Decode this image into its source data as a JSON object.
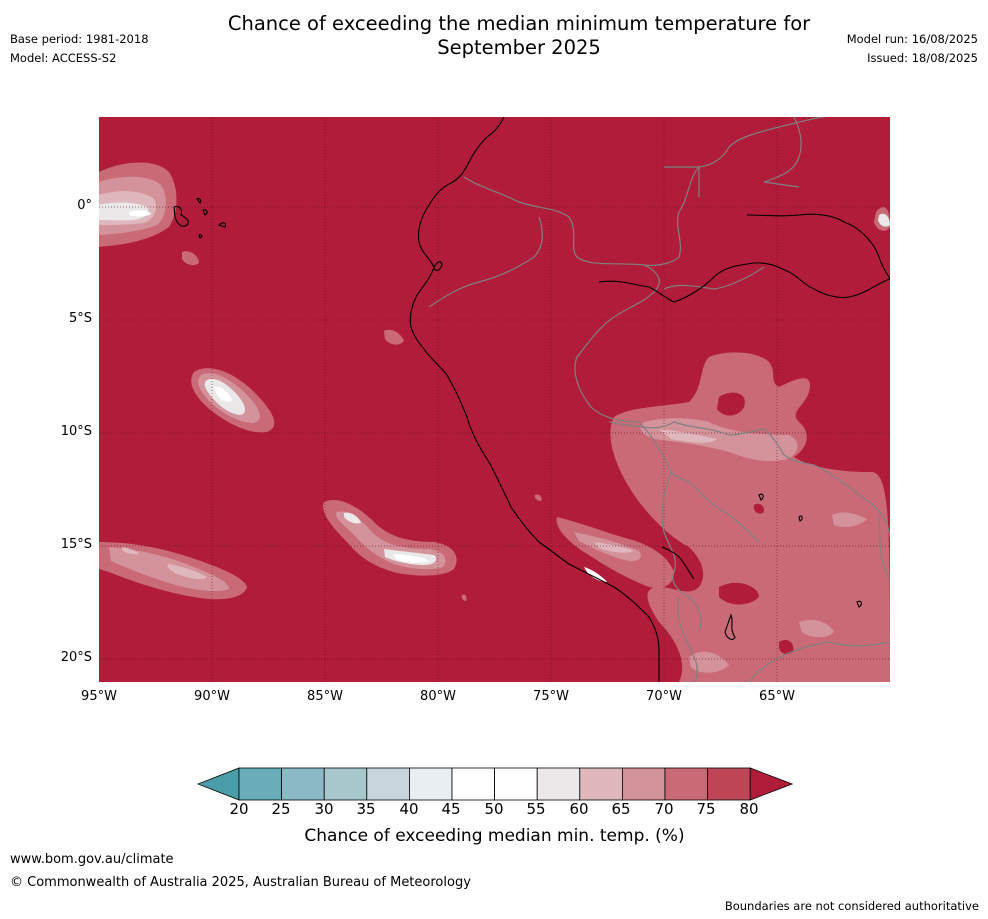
{
  "header": {
    "title_line1": "Chance of exceeding the median minimum temperature for",
    "title_line2": "September 2025",
    "base_period": "Base period: 1981-2018",
    "model": "Model: ACCESS-S2",
    "model_run": "Model run: 16/08/2025",
    "issued": "Issued: 18/08/2025"
  },
  "map": {
    "region": "Western South America and eastern Pacific",
    "background_color": "#b01c39",
    "coastline_color": "#000000",
    "border_color": "#808080",
    "lat_labels": [
      "0°",
      "5°S",
      "10°S",
      "15°S",
      "20°S"
    ],
    "lon_labels": [
      "95°W",
      "90°W",
      "85°W",
      "80°W",
      "75°W",
      "70°W",
      "65°W"
    ]
  },
  "legend": {
    "title": "Chance of exceeding median min. temp. (%)",
    "ticks": [
      "20",
      "25",
      "30",
      "35",
      "40",
      "45",
      "50",
      "55",
      "60",
      "65",
      "70",
      "75",
      "80"
    ],
    "colors": [
      "#4a9ca8",
      "#69adba",
      "#8bbac6",
      "#a8c7cd",
      "#c7d6dc",
      "#e8eef1",
      "#ffffff",
      "#ffffff",
      "#ebe8e9",
      "#dfb8be",
      "#d4929a",
      "#c96a76",
      "#bf4656",
      "#b01c39"
    ]
  },
  "footer": {
    "url": "www.bom.gov.au/climate",
    "copyright": "© Commonwealth of Australia 2025, Australian Bureau of Meteorology",
    "note": "Boundaries are not considered authoritative"
  }
}
